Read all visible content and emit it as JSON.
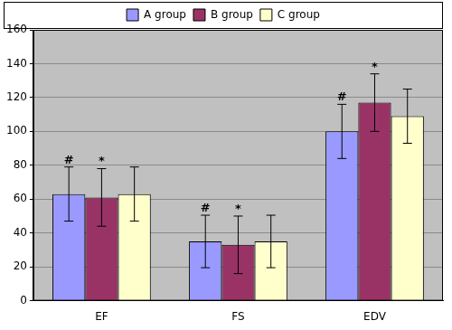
{
  "chart_data": {
    "type": "bar",
    "categories": [
      "EF",
      "FS",
      "EDV"
    ],
    "series": [
      {
        "name": "A group",
        "color": "#9999ff",
        "values": [
          63,
          35,
          100
        ],
        "errors": [
          16,
          15.5,
          16
        ],
        "annotations": [
          "#",
          "#",
          "#"
        ]
      },
      {
        "name": "B group",
        "color": "#993366",
        "values": [
          61,
          33,
          117
        ],
        "errors": [
          17,
          17,
          17
        ],
        "annotations": [
          "*",
          "*",
          "*"
        ]
      },
      {
        "name": "C group",
        "color": "#ffffcc",
        "values": [
          63,
          35,
          109
        ],
        "errors": [
          16,
          15.5,
          16
        ]
      }
    ],
    "ylim": [
      0,
      160
    ],
    "yticks": [
      0,
      20,
      40,
      60,
      80,
      100,
      120,
      140,
      160
    ],
    "grid": true,
    "legend": "top"
  }
}
